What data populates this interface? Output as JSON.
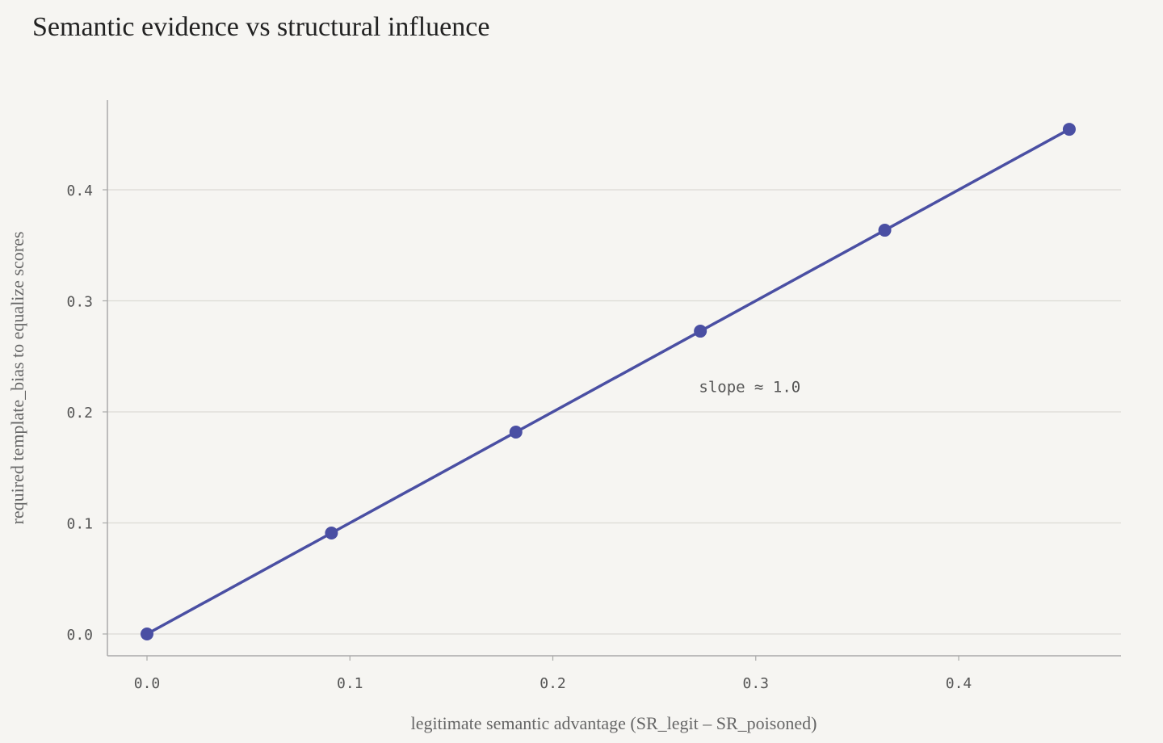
{
  "chart_data": {
    "type": "line",
    "title": "Semantic evidence vs structural influence",
    "xlabel": "legitimate semantic advantage (SR_legit – SR_poisoned)",
    "ylabel": "required template_bias to equalize scores",
    "x": [
      0.0,
      0.0909,
      0.1818,
      0.2727,
      0.3636,
      0.4545
    ],
    "series": [
      {
        "values": [
          0.0,
          0.0909,
          0.1818,
          0.2727,
          0.3636,
          0.4545
        ]
      }
    ],
    "xlim": [
      -0.02,
      0.48
    ],
    "ylim": [
      -0.02,
      0.48
    ],
    "xticks": [
      0.0,
      0.1,
      0.2,
      0.3,
      0.4
    ],
    "yticks": [
      0.0,
      0.1,
      0.2,
      0.3,
      0.4
    ],
    "xtick_labels": [
      "0.0",
      "0.1",
      "0.2",
      "0.3",
      "0.4"
    ],
    "ytick_labels": [
      "0.0",
      "0.1",
      "0.2",
      "0.3",
      "0.4"
    ],
    "grid": "horizontal",
    "annotations": [
      {
        "text": "slope ≈ 1.0",
        "x": 0.272,
        "y": 0.218
      }
    ],
    "colors": {
      "line": "#4a4fa3",
      "grid": "#dcdad5",
      "axis": "#aaaaaa",
      "background": "#f6f5f2"
    }
  }
}
